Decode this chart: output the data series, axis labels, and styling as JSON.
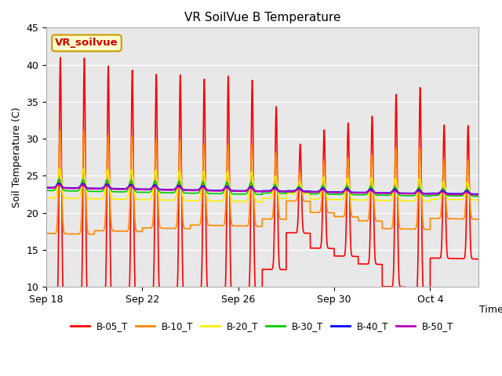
{
  "title": "VR SoilVue B Temperature",
  "xlabel": "Time",
  "ylabel": "Soil Temperature (C)",
  "ylim": [
    10,
    45
  ],
  "yticks": [
    10,
    15,
    20,
    25,
    30,
    35,
    40,
    45
  ],
  "plot_bg_color": "#e8e8e8",
  "series": [
    {
      "label": "B-05_T",
      "color": "#ff0000"
    },
    {
      "label": "B-10_T",
      "color": "#ff8800"
    },
    {
      "label": "B-20_T",
      "color": "#ffee00"
    },
    {
      "label": "B-30_T",
      "color": "#00cc00"
    },
    {
      "label": "B-40_T",
      "color": "#0000ff"
    },
    {
      "label": "B-50_T",
      "color": "#bb00bb"
    }
  ],
  "legend_box": {
    "text": "VR_soilvue",
    "facecolor": "#ffffcc",
    "edgecolor": "#cc9900",
    "textcolor": "#cc0000"
  },
  "xtick_labels": [
    "Sep 18",
    "Sep 22",
    "Sep 26",
    "Sep 30",
    "Oct 4"
  ],
  "xtick_positions": [
    0,
    4,
    8,
    12,
    16
  ],
  "n_days": 18,
  "pts_per_day": 288
}
